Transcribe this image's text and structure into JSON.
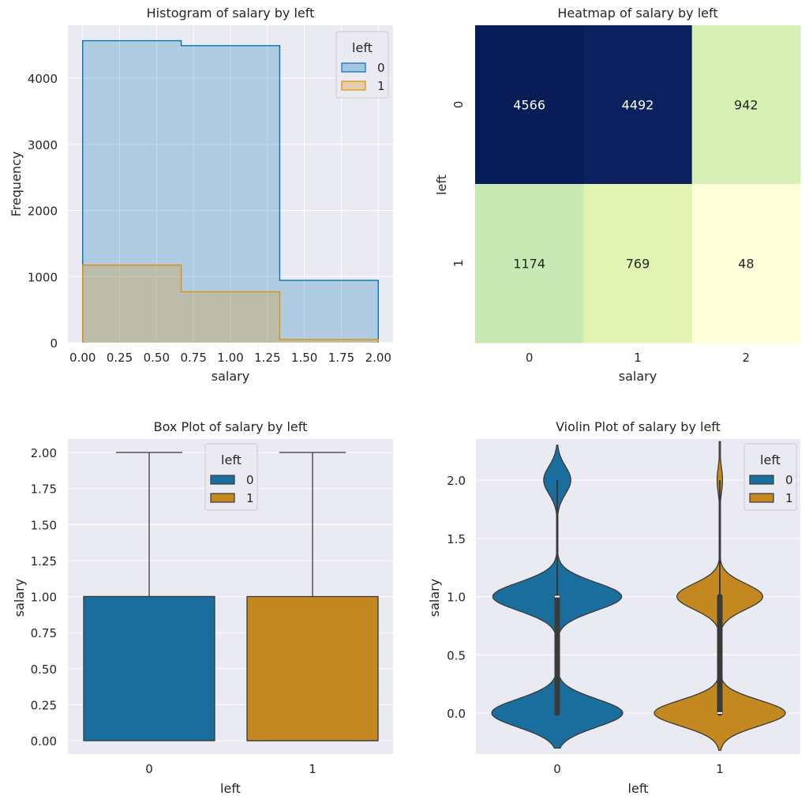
{
  "chart_data": [
    {
      "type": "bar",
      "subtype": "step-histogram",
      "title": "Histogram of salary by left",
      "xlabel": "salary",
      "ylabel": "Frequency",
      "xlim": [
        -0.1,
        2.1
      ],
      "ylim": [
        0,
        4800
      ],
      "xticks": [
        "0.00",
        "0.25",
        "0.50",
        "0.75",
        "1.00",
        "1.25",
        "1.50",
        "1.75",
        "2.00"
      ],
      "xtick_values": [
        0,
        0.25,
        0.5,
        0.75,
        1.0,
        1.25,
        1.5,
        1.75,
        2.0
      ],
      "yticks": [
        "0",
        "1000",
        "2000",
        "3000",
        "4000"
      ],
      "ytick_values": [
        0,
        1000,
        2000,
        3000,
        4000
      ],
      "bin_edges": [
        0,
        0.6667,
        1.3333,
        2.0
      ],
      "legend": {
        "title": "left",
        "position": "top-right"
      },
      "series": [
        {
          "name": "0",
          "values": [
            4566,
            4492,
            942
          ],
          "color": "#0173b2"
        },
        {
          "name": "1",
          "values": [
            1174,
            769,
            48
          ],
          "color": "#de8f05"
        }
      ],
      "grid": true
    },
    {
      "type": "heatmap",
      "title": "Heatmap of salary by left",
      "xlabel": "salary",
      "ylabel": "left",
      "x": [
        "0",
        "1",
        "2"
      ],
      "y": [
        "0",
        "1"
      ],
      "values": [
        [
          4566,
          4492,
          942
        ],
        [
          1174,
          769,
          48
        ]
      ],
      "labels": [
        [
          "4566",
          "4492",
          "942"
        ],
        [
          "1174",
          "769",
          "48"
        ]
      ],
      "colormap": "YlGnBu",
      "colors": [
        [
          "#081d58",
          "#0c2160",
          "#d6efb3"
        ],
        [
          "#c8e9b4",
          "#e2f4b2",
          "#ffffd9"
        ]
      ]
    },
    {
      "type": "box",
      "title": "Box Plot of salary by left",
      "xlabel": "left",
      "ylabel": "salary",
      "categories": [
        "0",
        "1"
      ],
      "ylim": [
        -0.09,
        2.09
      ],
      "yticks": [
        "0.00",
        "0.25",
        "0.50",
        "0.75",
        "1.00",
        "1.25",
        "1.50",
        "1.75",
        "2.00"
      ],
      "ytick_values": [
        0,
        0.25,
        0.5,
        0.75,
        1.0,
        1.25,
        1.5,
        1.75,
        2.0
      ],
      "legend": {
        "title": "left",
        "position": "top-center"
      },
      "series": [
        {
          "name": "0",
          "min": 0,
          "q1": 0,
          "median": 1,
          "q3": 1,
          "max": 2,
          "color": "#1a6e9e"
        },
        {
          "name": "1",
          "min": 0,
          "q1": 0,
          "median": 0,
          "q3": 1,
          "max": 2,
          "color": "#c38820"
        }
      ],
      "grid": true
    },
    {
      "type": "violin",
      "title": "Violin Plot of salary by left",
      "xlabel": "left",
      "ylabel": "salary",
      "categories": [
        "0",
        "1"
      ],
      "ylim": [
        -0.35,
        2.35
      ],
      "yticks": [
        "0.0",
        "0.5",
        "1.0",
        "1.5",
        "2.0"
      ],
      "ytick_values": [
        0,
        0.5,
        1.0,
        1.5,
        2.0
      ],
      "legend": {
        "title": "left",
        "position": "top-right"
      },
      "series": [
        {
          "name": "0",
          "counts": [
            4566,
            4492,
            942
          ],
          "median": 1,
          "q1": 0,
          "q3": 1,
          "min": 0,
          "max": 2,
          "color": "#1a6e9e"
        },
        {
          "name": "1",
          "counts": [
            1174,
            769,
            48
          ],
          "median": 0,
          "q1": 0,
          "q3": 1,
          "min": 0,
          "max": 2,
          "color": "#c38820"
        }
      ],
      "grid": true
    }
  ]
}
